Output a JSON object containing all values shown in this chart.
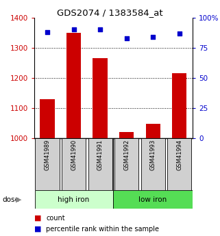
{
  "title": "GDS2074 / 1383584_at",
  "samples": [
    "GSM41989",
    "GSM41990",
    "GSM41991",
    "GSM41992",
    "GSM41993",
    "GSM41994"
  ],
  "counts": [
    1130,
    1350,
    1265,
    1020,
    1048,
    1215
  ],
  "percentile_ranks": [
    88,
    90,
    90,
    83,
    84,
    87
  ],
  "ymin": 1000,
  "ymax": 1400,
  "yticks": [
    1000,
    1100,
    1200,
    1300,
    1400
  ],
  "y2min": 0,
  "y2max": 100,
  "y2ticks": [
    0,
    25,
    50,
    75,
    100
  ],
  "bar_color": "#cc0000",
  "dot_color": "#0000cc",
  "high_iron_color": "#ccffcc",
  "low_iron_color": "#55dd55",
  "label_bg_color": "#d0d0d0",
  "tick_color_left": "#cc0000",
  "tick_color_right": "#0000cc",
  "legend_count_label": "count",
  "legend_pct_label": "percentile rank within the sample",
  "dose_label": "dose",
  "grid_color": "black",
  "grid_linestyle": ":"
}
